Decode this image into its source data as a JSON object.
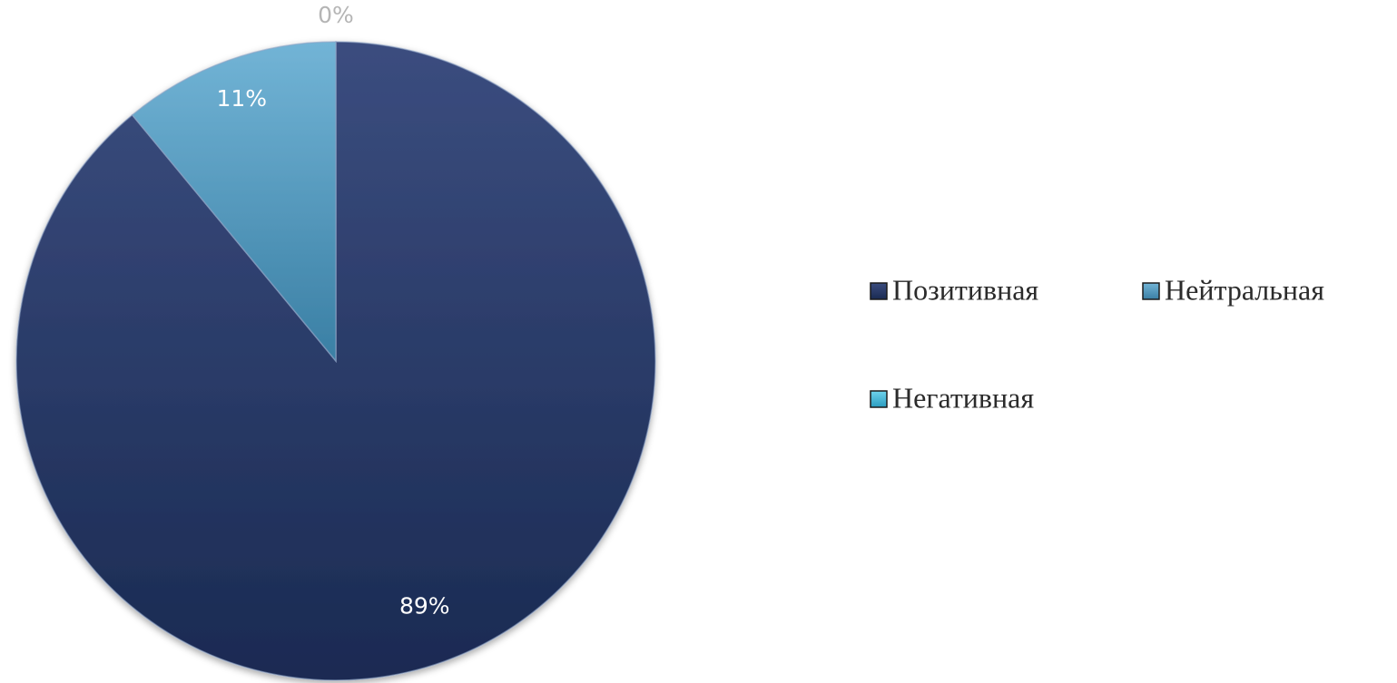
{
  "chart_data": {
    "type": "pie",
    "categories": [
      "Позитивная",
      "Нейтральная",
      "Негативная"
    ],
    "values": [
      89,
      11,
      0
    ],
    "data_labels": [
      "89%",
      "11%",
      "0%"
    ],
    "colors": [
      "#24345f",
      "#4a8fb6",
      "#39b6d6"
    ],
    "start_angle_deg": 0,
    "direction": "clockwise",
    "legend_position": "right"
  }
}
